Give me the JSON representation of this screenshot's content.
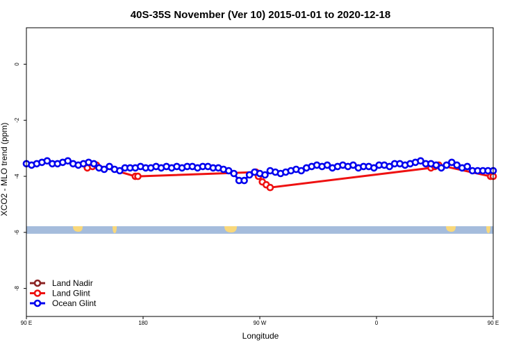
{
  "chart_data": {
    "type": "line",
    "title": "40S-35S November (Ver 10)   2015-01-01 to 2020-12-18",
    "xlabel": "Longitude",
    "ylabel": "XCO2 - MLO trend (ppm)",
    "xlim": [
      90,
      450
    ],
    "ylim": [
      -9.0,
      1.3
    ],
    "x_ticks": [
      {
        "value": 90,
        "label": "90 E"
      },
      {
        "value": 180,
        "label": "180"
      },
      {
        "value": 270,
        "label": "90 W"
      },
      {
        "value": 360,
        "label": "0"
      },
      {
        "value": 450,
        "label": "90 E"
      },
      {
        "value": 540,
        "label": "180"
      }
    ],
    "y_ticks": [
      {
        "value": 0,
        "label": "0"
      },
      {
        "value": -2,
        "label": "-2"
      },
      {
        "value": -4,
        "label": "-4"
      },
      {
        "value": -6,
        "label": "-6"
      },
      {
        "value": -8,
        "label": "-8"
      }
    ],
    "legend": {
      "position": "bottom-left"
    },
    "land_strip": {
      "y_top": -5.78,
      "y_bottom": -6.05,
      "ocean_color": "#a5bcdc",
      "land_color": "#f9d87a"
    },
    "series": [
      {
        "name": "Land Nadir",
        "color": "#8b2323",
        "x": [],
        "y": []
      },
      {
        "name": "Land Glint",
        "color": "#ee1111",
        "x": [
          137,
          141,
          144,
          174,
          176,
          267,
          269,
          272,
          275,
          278,
          402,
          405,
          408,
          448,
          450
        ],
        "y": [
          -3.7,
          -3.65,
          -3.6,
          -4.0,
          -4.0,
          -3.85,
          -4.0,
          -4.2,
          -4.3,
          -4.4,
          -3.7,
          -3.65,
          -3.6,
          -4.0,
          -4.0
        ]
      },
      {
        "name": "Ocean Glint",
        "color": "#0000ee",
        "x": [
          90,
          94,
          98,
          102,
          106,
          110,
          114,
          118,
          122,
          126,
          130,
          134,
          138,
          142,
          146,
          150,
          154,
          158,
          162,
          166,
          170,
          174,
          178,
          182,
          186,
          190,
          194,
          198,
          202,
          206,
          210,
          214,
          218,
          222,
          226,
          230,
          234,
          238,
          242,
          246,
          250,
          254,
          258,
          262,
          266,
          270,
          274,
          278,
          282,
          286,
          290,
          294,
          298,
          302,
          306,
          310,
          314,
          318,
          322,
          326,
          330,
          334,
          338,
          342,
          346,
          350,
          354,
          358,
          362,
          366,
          370,
          374,
          378,
          382,
          386,
          390,
          394,
          398,
          402,
          406,
          410,
          414,
          418,
          422,
          426,
          430,
          434,
          438,
          442,
          446,
          450
        ],
        "y": [
          -3.55,
          -3.6,
          -3.55,
          -3.5,
          -3.45,
          -3.55,
          -3.55,
          -3.5,
          -3.45,
          -3.55,
          -3.6,
          -3.55,
          -3.5,
          -3.55,
          -3.7,
          -3.75,
          -3.65,
          -3.75,
          -3.8,
          -3.7,
          -3.7,
          -3.7,
          -3.65,
          -3.7,
          -3.7,
          -3.65,
          -3.7,
          -3.65,
          -3.7,
          -3.65,
          -3.7,
          -3.65,
          -3.65,
          -3.7,
          -3.65,
          -3.65,
          -3.7,
          -3.7,
          -3.75,
          -3.8,
          -3.9,
          -4.15,
          -4.15,
          -3.95,
          -3.85,
          -3.9,
          -3.95,
          -3.8,
          -3.85,
          -3.9,
          -3.85,
          -3.8,
          -3.75,
          -3.8,
          -3.7,
          -3.65,
          -3.6,
          -3.65,
          -3.6,
          -3.7,
          -3.65,
          -3.6,
          -3.65,
          -3.6,
          -3.7,
          -3.65,
          -3.65,
          -3.7,
          -3.6,
          -3.6,
          -3.65,
          -3.55,
          -3.55,
          -3.6,
          -3.55,
          -3.5,
          -3.45,
          -3.55,
          -3.55,
          -3.6,
          -3.7,
          -3.6,
          -3.5,
          -3.6,
          -3.7,
          -3.65,
          -3.8,
          -3.8,
          -3.8,
          -3.8,
          -3.8
        ]
      }
    ]
  }
}
